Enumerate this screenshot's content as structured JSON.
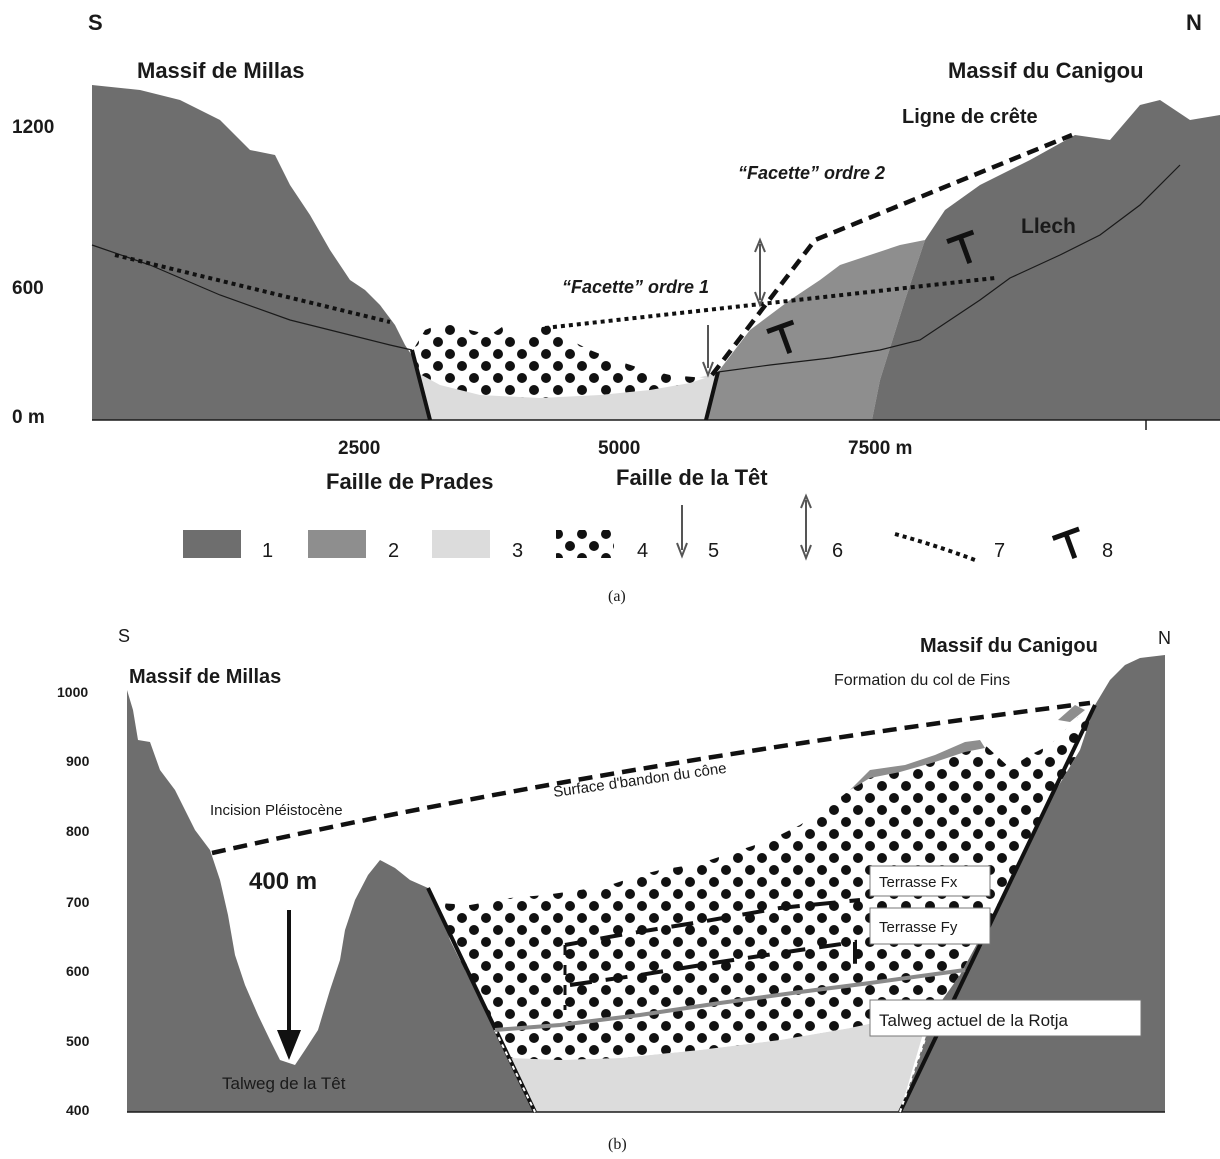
{
  "colors": {
    "unit_1": "#6e6e6e",
    "unit_2": "#8e8e8e",
    "unit_3": "#dcdcdc",
    "unit_4_dots": "#111111",
    "ink": "#1a1a1a"
  },
  "panel_a": {
    "south": "S",
    "north": "N",
    "massif_left": "Massif de Millas",
    "massif_right": "Massif du Canigou",
    "y_ticks": [
      "1200",
      "600",
      "0 m"
    ],
    "x_ticks": [
      "2500",
      "5000",
      "7500 m"
    ],
    "ridge_line": "Ligne de crête",
    "facette_2": "“Facette” ordre 2",
    "facette_1": "“Facette” ordre 1",
    "llech": "Llech",
    "fault_prades": "Faille de Prades",
    "fault_tet": "Faille de la Têt",
    "caption": "(a)",
    "legend": [
      {
        "label": "1",
        "symbol": "swatch-dark"
      },
      {
        "label": "2",
        "symbol": "swatch-medium"
      },
      {
        "label": "3",
        "symbol": "swatch-light"
      },
      {
        "label": "4",
        "symbol": "swatch-dotted"
      },
      {
        "label": "5",
        "symbol": "arrow-down-icon"
      },
      {
        "label": "6",
        "symbol": "double-arrow-icon"
      },
      {
        "label": "7",
        "symbol": "dotted-line"
      },
      {
        "label": "8",
        "symbol": "t-symbol-icon"
      }
    ]
  },
  "panel_b": {
    "south": "S",
    "north": "N",
    "massif_left": "Massif de Millas",
    "massif_right": "Massif du Canigou",
    "y_ticks": [
      "1000",
      "900",
      "800",
      "700",
      "600",
      "500",
      "400"
    ],
    "formation": "Formation du col de Fins",
    "surface": "Surface d'bandon du cône",
    "incision": "Incision Pléistocène",
    "depth": "400 m",
    "talweg_tet": "Talweg de la Têt",
    "terrasse_fx": "Terrasse Fx",
    "terrasse_fy": "Terrasse Fy",
    "talweg_rotja": "Talweg actuel de la Rotja",
    "caption": "(b)"
  }
}
